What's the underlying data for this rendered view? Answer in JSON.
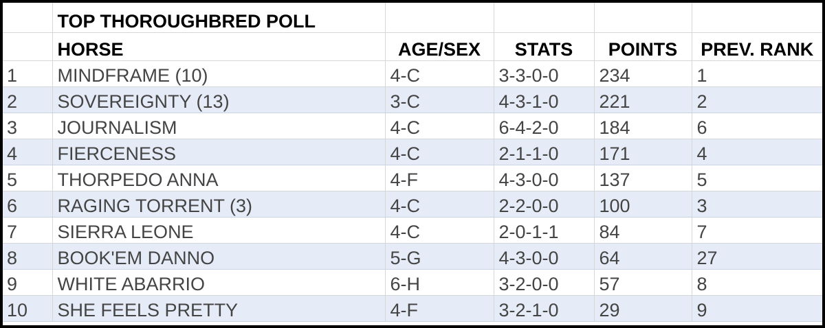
{
  "title": "TOP THOROUGHBRED POLL",
  "columns": [
    "HORSE",
    "AGE/SEX",
    "STATS",
    "POINTS",
    "PREV. RANK"
  ],
  "rows": [
    {
      "rank": "1",
      "horse": "MINDFRAME (10)",
      "age_sex": "4-C",
      "stats": "3-3-0-0",
      "points": "234",
      "prev": "1"
    },
    {
      "rank": "2",
      "horse": "SOVEREIGNTY (13)",
      "age_sex": "3-C",
      "stats": "4-3-1-0",
      "points": "221",
      "prev": "2"
    },
    {
      "rank": "3",
      "horse": "JOURNALISM",
      "age_sex": "4-C",
      "stats": "6-4-2-0",
      "points": "184",
      "prev": "6"
    },
    {
      "rank": "4",
      "horse": "FIERCENESS",
      "age_sex": "4-C",
      "stats": "2-1-1-0",
      "points": "171",
      "prev": "4"
    },
    {
      "rank": "5",
      "horse": "THORPEDO ANNA",
      "age_sex": "4-F",
      "stats": "4-3-0-0",
      "points": "137",
      "prev": "5"
    },
    {
      "rank": "6",
      "horse": "RAGING TORRENT (3)",
      "age_sex": "4-C",
      "stats": "2-2-0-0",
      "points": "100",
      "prev": "3"
    },
    {
      "rank": "7",
      "horse": "SIERRA LEONE",
      "age_sex": "4-C",
      "stats": "2-0-1-1",
      "points": "84",
      "prev": "7"
    },
    {
      "rank": "8",
      "horse": "BOOK'EM DANNO",
      "age_sex": "5-G",
      "stats": "4-3-0-0",
      "points": "64",
      "prev": "27"
    },
    {
      "rank": "9",
      "horse": "WHITE ABARRIO",
      "age_sex": "6-H",
      "stats": "3-2-0-0",
      "points": "57",
      "prev": "8"
    },
    {
      "rank": "10",
      "horse": "SHE FEELS PRETTY",
      "age_sex": "4-F",
      "stats": "3-2-1-0",
      "points": "29",
      "prev": "9"
    }
  ]
}
